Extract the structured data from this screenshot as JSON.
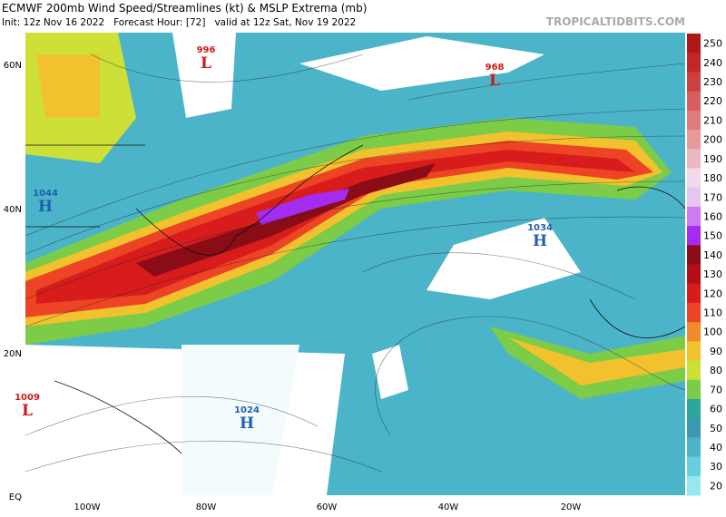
{
  "header": {
    "title": "ECMWF 200mb Wind Speed/Streamlines (kt) & MSLP Extrema (mb)",
    "subtitle": "Init: 12z Nov 16 2022   Forecast Hour: [72]   valid at 12z Sat, Nov 19 2022",
    "brand": "TROPICALTIDBITS.COM"
  },
  "latitude_labels": [
    "60N",
    "40N",
    "20N",
    "EQ"
  ],
  "longitude_labels": [
    "100W",
    "80W",
    "60W",
    "40W",
    "20W"
  ],
  "pressure_centers": [
    {
      "value": "996",
      "letter": "L"
    },
    {
      "value": "968",
      "letter": "L"
    },
    {
      "value": "1044",
      "letter": "H"
    },
    {
      "value": "1034",
      "letter": "H"
    },
    {
      "value": "1009",
      "letter": "L"
    },
    {
      "value": "1024",
      "letter": "H"
    }
  ],
  "colorbar": [
    {
      "value": 250,
      "color": "#b01818"
    },
    {
      "value": 240,
      "color": "#c02828"
    },
    {
      "value": 230,
      "color": "#cc4040"
    },
    {
      "value": 220,
      "color": "#d65e5e"
    },
    {
      "value": 210,
      "color": "#de7c7c"
    },
    {
      "value": 200,
      "color": "#e69a9a"
    },
    {
      "value": 190,
      "color": "#ecb8c4"
    },
    {
      "value": 180,
      "color": "#f2d8ea"
    },
    {
      "value": 170,
      "color": "#e8c4f0"
    },
    {
      "value": 160,
      "color": "#cc7cf0"
    },
    {
      "value": 150,
      "color": "#a32cf0"
    },
    {
      "value": 140,
      "color": "#8a0c16"
    },
    {
      "value": 130,
      "color": "#b40e14"
    },
    {
      "value": 120,
      "color": "#d81c1c"
    },
    {
      "value": 110,
      "color": "#ec4424"
    },
    {
      "value": 100,
      "color": "#f28a2a"
    },
    {
      "value": 90,
      "color": "#f2c22e"
    },
    {
      "value": 80,
      "color": "#cce038"
    },
    {
      "value": 70,
      "color": "#7ccc48"
    },
    {
      "value": 60,
      "color": "#2ca898"
    },
    {
      "value": 50,
      "color": "#3a9ab2"
    },
    {
      "value": 40,
      "color": "#4cb4c8"
    },
    {
      "value": 30,
      "color": "#66cedc"
    },
    {
      "value": 20,
      "color": "#96e8f0"
    }
  ]
}
